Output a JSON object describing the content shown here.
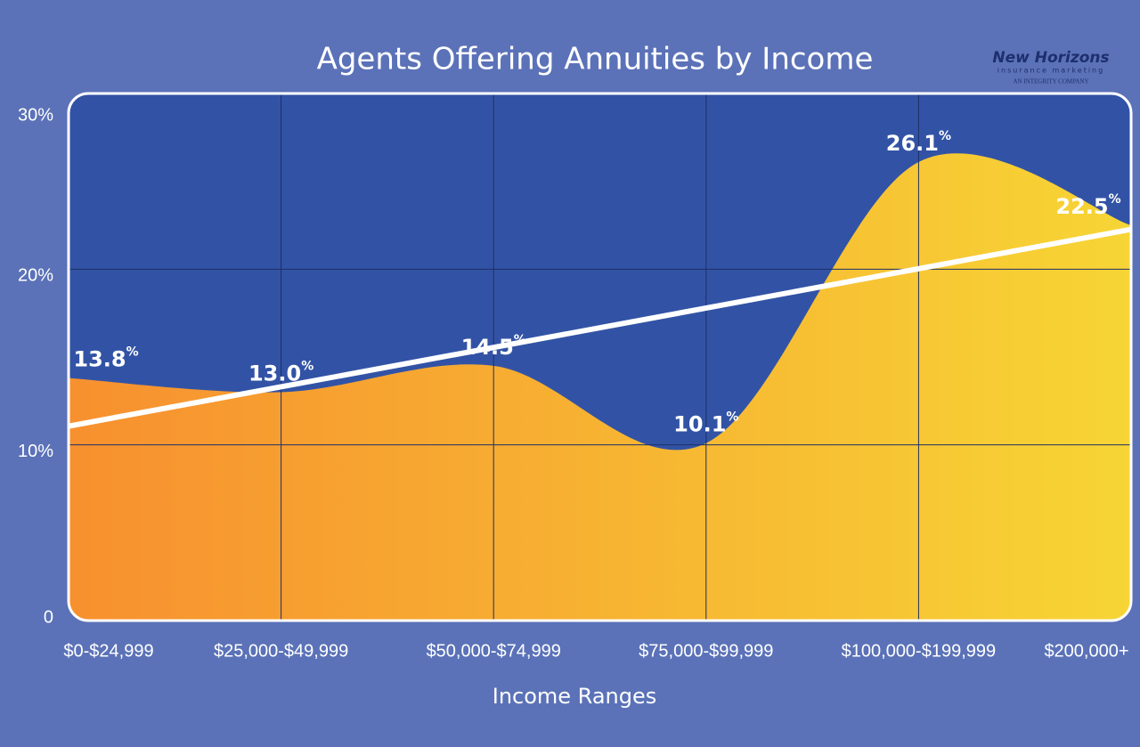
{
  "chart_data": {
    "type": "area",
    "title": "Agents Offering Annuities by Income",
    "x_label": "Income Ranges",
    "categories": [
      "$0-$24,999",
      "$25,000-$49,999",
      "$50,000-$74,999",
      "$75,000-$99,999",
      "$100,000-$199,999",
      "$200,000+"
    ],
    "values": [
      13.8,
      13.0,
      14.5,
      10.1,
      26.1,
      22.5
    ],
    "value_labels": [
      "13.8%",
      "13.0%",
      "14.5%",
      "10.1%",
      "26.1%",
      "22.5%"
    ],
    "colors": [
      "#f7902f",
      "#f7d535"
    ],
    "trendline": true,
    "grid": true,
    "ylim": [
      0,
      30
    ],
    "yticks": [
      0,
      {
        "value": 10,
        "label": "10%"
      },
      {
        "value": 20,
        "label": "20%"
      },
      {
        "value": 30,
        "label": "30%"
      }
    ]
  },
  "logo": {
    "name": "New Horizons",
    "tagline": "insurance marketing",
    "company": "AN INTEGRITY COMPANY"
  }
}
